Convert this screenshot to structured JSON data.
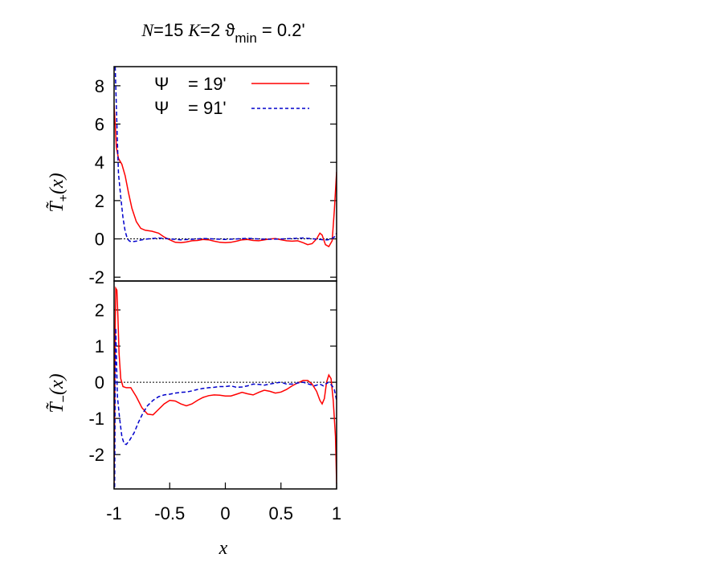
{
  "chart_data": [
    {
      "type": "line",
      "title": "N=15 K=2  ϑmin = 0.2'",
      "title_parts": {
        "n_sym": "N",
        "n_val": "=15 ",
        "k_sym": "K",
        "k_val": "=2  ϑ",
        "sub": "min",
        "rest": " = 0.2'"
      },
      "xlabel": "",
      "ylabel": "T̃+(x)",
      "ylabel_parts": {
        "main": "T̃",
        "sub": "+",
        "tail": "(x)"
      },
      "xlim": [
        -1,
        1
      ],
      "ylim": [
        -2.2,
        9
      ],
      "yticks": [
        "8",
        "6",
        "4",
        "2",
        "0",
        "-2"
      ],
      "ytick_values": [
        8,
        6,
        4,
        2,
        0,
        -2
      ],
      "zero_line": true,
      "legend_position": "top-right",
      "series": [
        {
          "name": "Ψ = 19'",
          "label_sym": "Ψ",
          "label_val": "= 19'",
          "color": "#ff0000",
          "dash": "solid",
          "points": [
            [
              -1.0,
              7.0
            ],
            [
              -0.99,
              6.0
            ],
            [
              -0.98,
              4.8
            ],
            [
              -0.96,
              4.2
            ],
            [
              -0.93,
              3.9
            ],
            [
              -0.9,
              3.3
            ],
            [
              -0.87,
              2.4
            ],
            [
              -0.84,
              1.6
            ],
            [
              -0.8,
              0.9
            ],
            [
              -0.76,
              0.55
            ],
            [
              -0.72,
              0.45
            ],
            [
              -0.66,
              0.4
            ],
            [
              -0.6,
              0.3
            ],
            [
              -0.55,
              0.1
            ],
            [
              -0.5,
              -0.05
            ],
            [
              -0.45,
              -0.18
            ],
            [
              -0.4,
              -0.2
            ],
            [
              -0.35,
              -0.16
            ],
            [
              -0.3,
              -0.1
            ],
            [
              -0.25,
              -0.08
            ],
            [
              -0.2,
              -0.03
            ],
            [
              -0.15,
              -0.05
            ],
            [
              -0.1,
              -0.12
            ],
            [
              -0.05,
              -0.18
            ],
            [
              0.0,
              -0.2
            ],
            [
              0.05,
              -0.18
            ],
            [
              0.1,
              -0.12
            ],
            [
              0.15,
              -0.05
            ],
            [
              0.2,
              -0.03
            ],
            [
              0.25,
              -0.08
            ],
            [
              0.3,
              -0.1
            ],
            [
              0.35,
              -0.05
            ],
            [
              0.4,
              0.0
            ],
            [
              0.45,
              0.02
            ],
            [
              0.5,
              -0.05
            ],
            [
              0.55,
              -0.1
            ],
            [
              0.6,
              -0.12
            ],
            [
              0.65,
              -0.1
            ],
            [
              0.7,
              -0.2
            ],
            [
              0.74,
              -0.3
            ],
            [
              0.78,
              -0.25
            ],
            [
              0.82,
              0.0
            ],
            [
              0.85,
              0.3
            ],
            [
              0.87,
              0.2
            ],
            [
              0.9,
              -0.3
            ],
            [
              0.93,
              -0.4
            ],
            [
              0.96,
              -0.1
            ],
            [
              0.98,
              1.5
            ],
            [
              1.0,
              3.5
            ]
          ]
        },
        {
          "name": "Ψ = 91'",
          "label_sym": "Ψ",
          "label_val": "= 91'",
          "color": "#0000cc",
          "dash": "dashed",
          "points": [
            [
              -0.99,
              9.0
            ],
            [
              -0.98,
              7.0
            ],
            [
              -0.97,
              5.0
            ],
            [
              -0.96,
              3.4
            ],
            [
              -0.94,
              2.2
            ],
            [
              -0.92,
              1.1
            ],
            [
              -0.9,
              0.4
            ],
            [
              -0.88,
              0.0
            ],
            [
              -0.86,
              -0.12
            ],
            [
              -0.84,
              -0.15
            ],
            [
              -0.8,
              -0.12
            ],
            [
              -0.75,
              -0.05
            ],
            [
              -0.7,
              0.0
            ],
            [
              -0.6,
              0.05
            ],
            [
              -0.5,
              0.0
            ],
            [
              -0.4,
              -0.05
            ],
            [
              -0.3,
              -0.02
            ],
            [
              -0.2,
              0.02
            ],
            [
              -0.1,
              0.0
            ],
            [
              0.0,
              -0.03
            ],
            [
              0.1,
              0.0
            ],
            [
              0.2,
              0.03
            ],
            [
              0.3,
              0.0
            ],
            [
              0.4,
              -0.02
            ],
            [
              0.5,
              0.0
            ],
            [
              0.6,
              0.02
            ],
            [
              0.7,
              0.05
            ],
            [
              0.8,
              0.0
            ],
            [
              0.88,
              -0.05
            ],
            [
              0.92,
              -0.05
            ],
            [
              0.95,
              0.0
            ],
            [
              0.98,
              0.1
            ],
            [
              1.0,
              0.3
            ]
          ]
        }
      ]
    },
    {
      "type": "line",
      "xlabel": "x",
      "ylabel": "T̃−(x)",
      "ylabel_parts": {
        "main": "T̃",
        "sub": "−",
        "tail": "(x)"
      },
      "xlim": [
        -1,
        1
      ],
      "ylim": [
        -2.95,
        2.8
      ],
      "xticks": [
        "-1",
        "-0.5",
        "0",
        "0.5",
        "1"
      ],
      "xtick_values": [
        -1,
        -0.5,
        0,
        0.5,
        1
      ],
      "yticks": [
        "2",
        "1",
        "0",
        "-1",
        "-2"
      ],
      "ytick_values": [
        2,
        1,
        0,
        -1,
        -2
      ],
      "zero_line": true,
      "series": [
        {
          "name": "Ψ = 19'",
          "color": "#ff0000",
          "dash": "solid",
          "points": [
            [
              -1.0,
              -2.9
            ],
            [
              -0.995,
              -1.0
            ],
            [
              -0.99,
              1.5
            ],
            [
              -0.985,
              2.6
            ],
            [
              -0.975,
              2.55
            ],
            [
              -0.965,
              1.8
            ],
            [
              -0.955,
              0.8
            ],
            [
              -0.94,
              0.1
            ],
            [
              -0.92,
              -0.12
            ],
            [
              -0.89,
              -0.15
            ],
            [
              -0.85,
              -0.15
            ],
            [
              -0.8,
              -0.4
            ],
            [
              -0.75,
              -0.7
            ],
            [
              -0.7,
              -0.88
            ],
            [
              -0.65,
              -0.9
            ],
            [
              -0.6,
              -0.75
            ],
            [
              -0.55,
              -0.6
            ],
            [
              -0.5,
              -0.5
            ],
            [
              -0.45,
              -0.52
            ],
            [
              -0.4,
              -0.6
            ],
            [
              -0.35,
              -0.65
            ],
            [
              -0.3,
              -0.6
            ],
            [
              -0.25,
              -0.5
            ],
            [
              -0.2,
              -0.42
            ],
            [
              -0.15,
              -0.37
            ],
            [
              -0.1,
              -0.35
            ],
            [
              -0.05,
              -0.36
            ],
            [
              0.0,
              -0.38
            ],
            [
              0.05,
              -0.38
            ],
            [
              0.1,
              -0.33
            ],
            [
              0.15,
              -0.28
            ],
            [
              0.2,
              -0.32
            ],
            [
              0.25,
              -0.35
            ],
            [
              0.3,
              -0.28
            ],
            [
              0.35,
              -0.22
            ],
            [
              0.4,
              -0.25
            ],
            [
              0.45,
              -0.3
            ],
            [
              0.5,
              -0.27
            ],
            [
              0.55,
              -0.2
            ],
            [
              0.6,
              -0.1
            ],
            [
              0.65,
              -0.02
            ],
            [
              0.7,
              0.05
            ],
            [
              0.74,
              0.05
            ],
            [
              0.78,
              -0.05
            ],
            [
              0.82,
              -0.25
            ],
            [
              0.85,
              -0.5
            ],
            [
              0.87,
              -0.6
            ],
            [
              0.89,
              -0.45
            ],
            [
              0.91,
              0.0
            ],
            [
              0.93,
              0.2
            ],
            [
              0.95,
              0.1
            ],
            [
              0.97,
              -0.5
            ],
            [
              0.99,
              -1.5
            ],
            [
              1.0,
              -2.8
            ]
          ]
        },
        {
          "name": "Ψ = 91'",
          "color": "#0000cc",
          "dash": "dashed",
          "points": [
            [
              -0.995,
              -2.9
            ],
            [
              -0.99,
              0.0
            ],
            [
              -0.985,
              1.5
            ],
            [
              -0.98,
              0.8
            ],
            [
              -0.97,
              -0.4
            ],
            [
              -0.95,
              -1.0
            ],
            [
              -0.93,
              -1.5
            ],
            [
              -0.91,
              -1.7
            ],
            [
              -0.89,
              -1.72
            ],
            [
              -0.86,
              -1.6
            ],
            [
              -0.82,
              -1.4
            ],
            [
              -0.78,
              -1.1
            ],
            [
              -0.74,
              -0.85
            ],
            [
              -0.7,
              -0.65
            ],
            [
              -0.65,
              -0.5
            ],
            [
              -0.6,
              -0.4
            ],
            [
              -0.55,
              -0.35
            ],
            [
              -0.5,
              -0.33
            ],
            [
              -0.45,
              -0.3
            ],
            [
              -0.4,
              -0.28
            ],
            [
              -0.35,
              -0.27
            ],
            [
              -0.3,
              -0.24
            ],
            [
              -0.25,
              -0.2
            ],
            [
              -0.2,
              -0.17
            ],
            [
              -0.15,
              -0.15
            ],
            [
              -0.1,
              -0.14
            ],
            [
              -0.05,
              -0.12
            ],
            [
              0.0,
              -0.12
            ],
            [
              0.05,
              -0.1
            ],
            [
              0.1,
              -0.14
            ],
            [
              0.15,
              -0.13
            ],
            [
              0.2,
              -0.1
            ],
            [
              0.25,
              -0.05
            ],
            [
              0.3,
              -0.06
            ],
            [
              0.35,
              -0.08
            ],
            [
              0.4,
              -0.05
            ],
            [
              0.45,
              -0.02
            ],
            [
              0.5,
              0.0
            ],
            [
              0.55,
              -0.05
            ],
            [
              0.6,
              -0.05
            ],
            [
              0.65,
              -0.02
            ],
            [
              0.7,
              0.0
            ],
            [
              0.75,
              -0.05
            ],
            [
              0.8,
              -0.1
            ],
            [
              0.85,
              -0.05
            ],
            [
              0.88,
              -0.1
            ],
            [
              0.9,
              -0.05
            ],
            [
              0.93,
              0.0
            ],
            [
              0.96,
              -0.1
            ],
            [
              0.98,
              -0.2
            ],
            [
              1.0,
              -0.5
            ]
          ]
        }
      ]
    }
  ]
}
